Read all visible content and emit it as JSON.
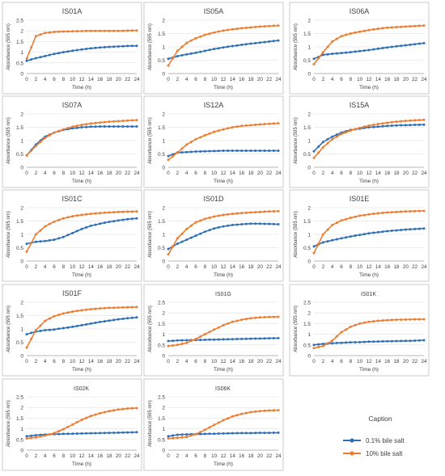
{
  "series_names": [
    "0.1% bile salt",
    "10% bile salt"
  ],
  "colors": {
    "low": "#2e6fb7",
    "high": "#ed7d31",
    "grid": "#d9d9d9",
    "panel_border": "#bfbfbf",
    "text": "#404040"
  },
  "common": {
    "xlabel": "Time (h)",
    "ylabel": "Absorbance (595 nm)",
    "x_ticks": [
      "0",
      "2",
      "4",
      "6",
      "8",
      "10",
      "12",
      "14",
      "16",
      "18",
      "20",
      "22",
      "24"
    ],
    "y_ticks_a": [
      "0",
      "0.5",
      "1",
      "1.5",
      "2"
    ],
    "y_ticks_b": [
      "0",
      "0.5",
      "1",
      "1.5",
      "2",
      "2.5"
    ]
  },
  "legend": {
    "title": "Caption",
    "items": [
      "0.1% bile salt",
      "10% bile salt"
    ]
  },
  "chart_data": [
    {
      "type": "line",
      "title": "IS01A",
      "x": [
        0,
        2,
        4,
        6,
        8,
        10,
        12,
        14,
        16,
        18,
        20,
        22,
        24
      ],
      "ylim": [
        0,
        2.5
      ],
      "xlabel": "Time (h)",
      "ylabel": "Absorbance (595 nm)",
      "series": [
        {
          "name": "0.1% bile salt",
          "values": [
            0.6,
            0.72,
            0.82,
            0.92,
            1.0,
            1.07,
            1.13,
            1.18,
            1.22,
            1.25,
            1.27,
            1.29,
            1.3
          ]
        },
        {
          "name": "10% bile salt",
          "values": [
            0.7,
            1.75,
            1.9,
            1.95,
            1.97,
            1.98,
            1.99,
            2.0,
            2.0,
            2.0,
            2.0,
            2.01,
            2.02
          ]
        }
      ]
    },
    {
      "type": "line",
      "title": "IS05A",
      "x": [
        0,
        2,
        4,
        6,
        8,
        10,
        12,
        14,
        16,
        18,
        20,
        22,
        24
      ],
      "ylim": [
        0,
        2
      ],
      "xlabel": "Time (h)",
      "ylabel": "Absorbance (595 nm)",
      "series": [
        {
          "name": "0.1% bile salt",
          "values": [
            0.55,
            0.65,
            0.72,
            0.78,
            0.85,
            0.92,
            0.98,
            1.03,
            1.08,
            1.12,
            1.16,
            1.2,
            1.24
          ]
        },
        {
          "name": "10% bile salt",
          "values": [
            0.3,
            0.85,
            1.15,
            1.32,
            1.45,
            1.54,
            1.61,
            1.66,
            1.7,
            1.73,
            1.76,
            1.78,
            1.8
          ]
        }
      ]
    },
    {
      "type": "line",
      "title": "IS06A",
      "x": [
        0,
        2,
        4,
        6,
        8,
        10,
        12,
        14,
        16,
        18,
        20,
        22,
        24
      ],
      "ylim": [
        0,
        2
      ],
      "xlabel": "Time (h)",
      "ylabel": "Absorbance (595 nm)",
      "series": [
        {
          "name": "0.1% bile salt",
          "values": [
            0.55,
            0.7,
            0.74,
            0.77,
            0.8,
            0.84,
            0.88,
            0.93,
            0.98,
            1.02,
            1.06,
            1.1,
            1.14
          ]
        },
        {
          "name": "10% bile salt",
          "values": [
            0.35,
            0.8,
            1.2,
            1.4,
            1.5,
            1.57,
            1.63,
            1.68,
            1.72,
            1.74,
            1.76,
            1.78,
            1.8
          ]
        }
      ]
    },
    {
      "type": "line",
      "title": "IS07A",
      "x": [
        0,
        2,
        4,
        6,
        8,
        10,
        12,
        14,
        16,
        18,
        20,
        22,
        24
      ],
      "ylim": [
        0,
        2
      ],
      "xlabel": "Time (h)",
      "ylabel": "Absorbance (595 nm)",
      "series": [
        {
          "name": "0.1% bile salt",
          "values": [
            0.45,
            0.85,
            1.15,
            1.3,
            1.4,
            1.46,
            1.5,
            1.52,
            1.53,
            1.53,
            1.53,
            1.53,
            1.53
          ]
        },
        {
          "name": "10% bile salt",
          "values": [
            0.45,
            0.8,
            1.1,
            1.3,
            1.42,
            1.52,
            1.59,
            1.64,
            1.68,
            1.71,
            1.73,
            1.75,
            1.77
          ]
        }
      ]
    },
    {
      "type": "line",
      "title": "IS12A",
      "x": [
        0,
        2,
        4,
        6,
        8,
        10,
        12,
        14,
        16,
        18,
        20,
        22,
        24
      ],
      "ylim": [
        0,
        2
      ],
      "xlabel": "Time (h)",
      "ylabel": "Absorbance (595 nm)",
      "series": [
        {
          "name": "0.1% bile salt",
          "values": [
            0.42,
            0.55,
            0.57,
            0.59,
            0.6,
            0.61,
            0.62,
            0.62,
            0.62,
            0.62,
            0.62,
            0.62,
            0.62
          ]
        },
        {
          "name": "10% bile salt",
          "values": [
            0.28,
            0.55,
            0.85,
            1.05,
            1.2,
            1.33,
            1.42,
            1.5,
            1.55,
            1.58,
            1.61,
            1.63,
            1.65
          ]
        }
      ]
    },
    {
      "type": "line",
      "title": "IS15A",
      "x": [
        0,
        2,
        4,
        6,
        8,
        10,
        12,
        14,
        16,
        18,
        20,
        22,
        24
      ],
      "ylim": [
        0,
        2
      ],
      "xlabel": "Time (h)",
      "ylabel": "Absorbance (595 nm)",
      "series": [
        {
          "name": "0.1% bile salt",
          "values": [
            0.6,
            0.95,
            1.15,
            1.3,
            1.4,
            1.45,
            1.5,
            1.52,
            1.55,
            1.57,
            1.58,
            1.59,
            1.6
          ]
        },
        {
          "name": "10% bile salt",
          "values": [
            0.35,
            0.75,
            1.05,
            1.25,
            1.38,
            1.48,
            1.56,
            1.62,
            1.67,
            1.71,
            1.74,
            1.76,
            1.78
          ]
        }
      ]
    },
    {
      "type": "line",
      "title": "IS01C",
      "x": [
        0,
        2,
        4,
        6,
        8,
        10,
        12,
        14,
        16,
        18,
        20,
        22,
        24
      ],
      "ylim": [
        0,
        2
      ],
      "xlabel": "Time (h)",
      "ylabel": "Absorbance (595 nm)",
      "series": [
        {
          "name": "0.1% bile salt",
          "values": [
            0.65,
            0.72,
            0.75,
            0.8,
            0.9,
            1.05,
            1.2,
            1.32,
            1.4,
            1.47,
            1.52,
            1.57,
            1.6
          ]
        },
        {
          "name": "10% bile salt",
          "values": [
            0.35,
            1.0,
            1.3,
            1.48,
            1.6,
            1.68,
            1.73,
            1.77,
            1.8,
            1.82,
            1.84,
            1.85,
            1.86
          ]
        }
      ]
    },
    {
      "type": "line",
      "title": "IS01D",
      "x": [
        0,
        2,
        4,
        6,
        8,
        10,
        12,
        14,
        16,
        18,
        20,
        22,
        24
      ],
      "ylim": [
        0,
        2
      ],
      "xlabel": "Time (h)",
      "ylabel": "Absorbance (595 nm)",
      "series": [
        {
          "name": "0.1% bile salt",
          "values": [
            0.45,
            0.65,
            0.8,
            0.95,
            1.1,
            1.22,
            1.3,
            1.35,
            1.38,
            1.4,
            1.4,
            1.39,
            1.38
          ]
        },
        {
          "name": "10% bile salt",
          "values": [
            0.25,
            0.85,
            1.2,
            1.45,
            1.58,
            1.67,
            1.73,
            1.77,
            1.8,
            1.82,
            1.84,
            1.86,
            1.87
          ]
        }
      ]
    },
    {
      "type": "line",
      "title": "IS01E",
      "x": [
        0,
        2,
        4,
        6,
        8,
        10,
        12,
        14,
        16,
        18,
        20,
        22,
        24
      ],
      "ylim": [
        0,
        2
      ],
      "xlabel": "Time (h)",
      "ylabel": "Absorbance (595 nm)",
      "series": [
        {
          "name": "0.1% bile salt",
          "values": [
            0.55,
            0.7,
            0.78,
            0.85,
            0.92,
            0.98,
            1.04,
            1.08,
            1.12,
            1.15,
            1.18,
            1.2,
            1.22
          ]
        },
        {
          "name": "10% bile salt",
          "values": [
            0.3,
            1.0,
            1.35,
            1.52,
            1.62,
            1.7,
            1.75,
            1.79,
            1.82,
            1.84,
            1.86,
            1.87,
            1.88
          ]
        }
      ]
    },
    {
      "type": "line",
      "title": "IS01F",
      "x": [
        0,
        2,
        4,
        6,
        8,
        10,
        12,
        14,
        16,
        18,
        20,
        22,
        24
      ],
      "ylim": [
        0,
        2
      ],
      "xlabel": "Time (h)",
      "ylabel": "Absorbance (595 nm)",
      "series": [
        {
          "name": "0.1% bile salt",
          "values": [
            0.8,
            0.9,
            0.95,
            0.98,
            1.03,
            1.08,
            1.14,
            1.2,
            1.26,
            1.31,
            1.36,
            1.4,
            1.43
          ]
        },
        {
          "name": "10% bile salt",
          "values": [
            0.3,
            0.95,
            1.3,
            1.48,
            1.58,
            1.65,
            1.7,
            1.74,
            1.77,
            1.79,
            1.8,
            1.81,
            1.82
          ]
        }
      ]
    },
    {
      "type": "line",
      "title": "IS01G",
      "x": [
        0,
        2,
        4,
        6,
        8,
        10,
        12,
        14,
        16,
        18,
        20,
        22,
        24
      ],
      "ylim": [
        0,
        2.5
      ],
      "xlabel": "Time (h)",
      "ylabel": "Absorbance (595 nm)",
      "series": [
        {
          "name": "0.1% bile salt",
          "values": [
            0.68,
            0.71,
            0.72,
            0.73,
            0.74,
            0.75,
            0.76,
            0.77,
            0.78,
            0.79,
            0.8,
            0.81,
            0.82
          ]
        },
        {
          "name": "10% bile salt",
          "values": [
            0.45,
            0.5,
            0.6,
            0.78,
            1.0,
            1.22,
            1.42,
            1.58,
            1.68,
            1.75,
            1.79,
            1.81,
            1.82
          ]
        }
      ]
    },
    {
      "type": "line",
      "title": "IS01K",
      "x": [
        0,
        2,
        4,
        6,
        8,
        10,
        12,
        14,
        16,
        18,
        20,
        22,
        24
      ],
      "ylim": [
        0,
        2.5
      ],
      "xlabel": "Time (h)",
      "ylabel": "Absorbance (595 nm)",
      "series": [
        {
          "name": "0.1% bile salt",
          "values": [
            0.5,
            0.55,
            0.58,
            0.6,
            0.62,
            0.63,
            0.65,
            0.66,
            0.67,
            0.68,
            0.69,
            0.7,
            0.72
          ]
        },
        {
          "name": "10% bile salt",
          "values": [
            0.35,
            0.45,
            0.7,
            1.1,
            1.35,
            1.5,
            1.58,
            1.63,
            1.66,
            1.68,
            1.69,
            1.7,
            1.7
          ]
        }
      ]
    },
    {
      "type": "line",
      "title": "IS02K",
      "x": [
        0,
        2,
        4,
        6,
        8,
        10,
        12,
        14,
        16,
        18,
        20,
        22,
        24
      ],
      "ylim": [
        0,
        2.5
      ],
      "xlabel": "Time (h)",
      "ylabel": "Absorbance (595 nm)",
      "series": [
        {
          "name": "0.1% bile salt",
          "values": [
            0.65,
            0.7,
            0.73,
            0.75,
            0.76,
            0.77,
            0.78,
            0.79,
            0.8,
            0.81,
            0.82,
            0.83,
            0.84
          ]
        },
        {
          "name": "10% bile salt",
          "values": [
            0.55,
            0.6,
            0.68,
            0.8,
            0.98,
            1.2,
            1.42,
            1.6,
            1.73,
            1.83,
            1.9,
            1.95,
            1.97
          ]
        }
      ]
    },
    {
      "type": "line",
      "title": "IS06K",
      "x": [
        0,
        2,
        4,
        6,
        8,
        10,
        12,
        14,
        16,
        18,
        20,
        22,
        24
      ],
      "ylim": [
        0,
        2.5
      ],
      "xlabel": "Time (h)",
      "ylabel": "Absorbance (595 nm)",
      "series": [
        {
          "name": "0.1% bile salt",
          "values": [
            0.65,
            0.72,
            0.74,
            0.75,
            0.76,
            0.77,
            0.78,
            0.79,
            0.8,
            0.8,
            0.81,
            0.81,
            0.82
          ]
        },
        {
          "name": "10% bile salt",
          "values": [
            0.55,
            0.58,
            0.62,
            0.75,
            0.95,
            1.18,
            1.4,
            1.58,
            1.7,
            1.78,
            1.83,
            1.86,
            1.87
          ]
        }
      ]
    }
  ]
}
